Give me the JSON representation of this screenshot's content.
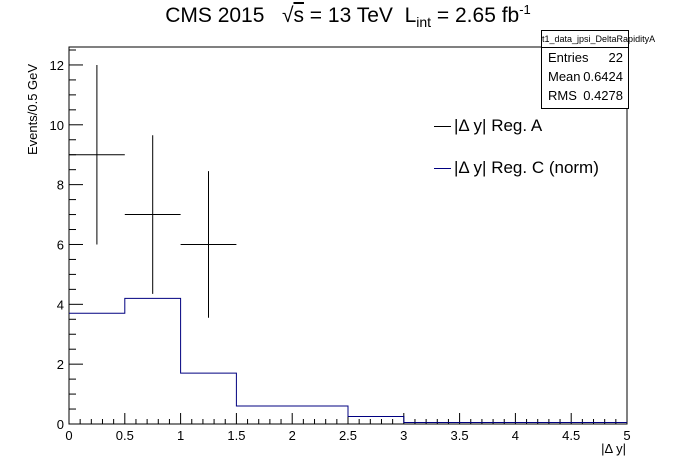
{
  "title": {
    "experiment": "CMS 2015",
    "energy_prefix": "√",
    "energy_s": "s",
    "energy_value": " = 13 TeV",
    "lumi_L": "L",
    "lumi_sub": "int",
    "lumi_value": " = 2.65 fb",
    "lumi_sup": "-1"
  },
  "stats": {
    "name": "t1_data_jpsi_DeltaRapidityA",
    "rows": [
      {
        "label": "Entries",
        "value": "22"
      },
      {
        "label": "Mean",
        "value": "0.6424"
      },
      {
        "label": "RMS",
        "value": "0.4278"
      }
    ]
  },
  "legend": [
    {
      "label": "|Δ y| Reg. A",
      "color": "#000000"
    },
    {
      "label": "|Δ y| Reg. C (norm)",
      "color": "#000080"
    }
  ],
  "colors": {
    "regA": "#000000",
    "regC": "#000080",
    "axis": "#000000"
  },
  "chart_data": {
    "type": "histogram",
    "xlabel": "|Δ y|",
    "ylabel": "Events/0.5 GeV",
    "xlim": [
      0,
      5
    ],
    "ylim": [
      0,
      12.6
    ],
    "x_ticks": [
      0,
      0.5,
      1,
      1.5,
      2,
      2.5,
      3,
      3.5,
      4,
      4.5,
      5
    ],
    "y_ticks": [
      0,
      2,
      4,
      6,
      8,
      10,
      12
    ],
    "bin_edges": [
      0,
      0.5,
      1,
      1.5,
      2,
      2.5,
      3,
      3.5,
      4,
      4.5,
      5
    ],
    "series": [
      {
        "name": "|Δ y| Reg. A",
        "style": "points_with_errors",
        "values": [
          9,
          7,
          6,
          0,
          0,
          0,
          0,
          0,
          0,
          0
        ],
        "errors": [
          3,
          2.65,
          2.45,
          0,
          0,
          0,
          0,
          0,
          0,
          0
        ]
      },
      {
        "name": "|Δ y| Reg. C (norm)",
        "style": "step",
        "values": [
          3.7,
          4.2,
          1.7,
          0.6,
          0.6,
          0.25,
          0.05,
          0.05,
          0.05,
          0.05
        ]
      }
    ]
  }
}
